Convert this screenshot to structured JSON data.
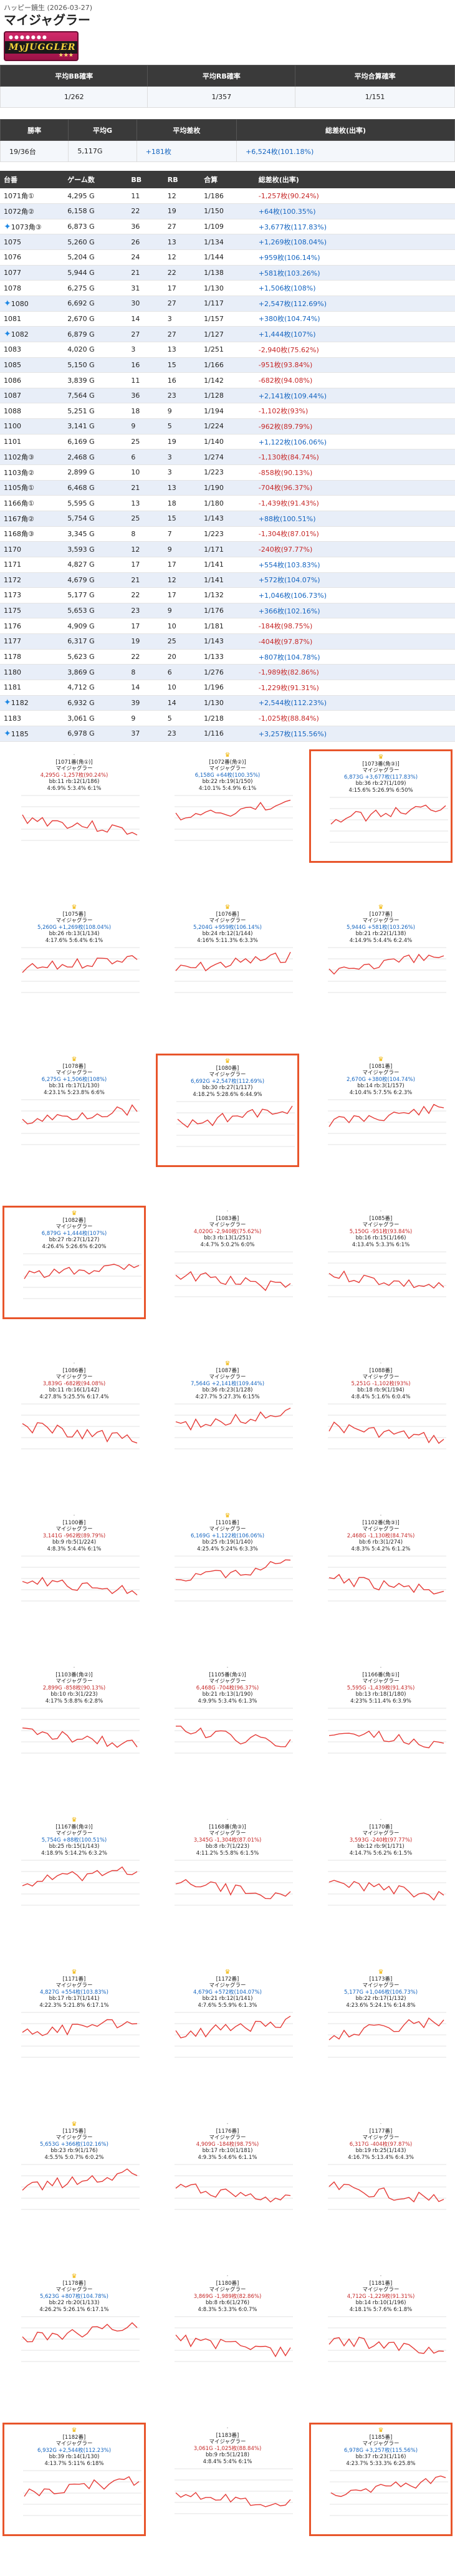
{
  "breadcrumb": "ハッピー鏡生 (2026-03-27)",
  "title": "マイジャグラー",
  "logo_text": "MyJUGGLER",
  "summary1": {
    "headers": [
      "平均BB確率",
      "平均RB確率",
      "平均合算確率"
    ],
    "values": [
      "1/262",
      "1/357",
      "1/151"
    ]
  },
  "summary2": {
    "headers": [
      "勝率",
      "平均G",
      "平均差枚",
      "総差枚(出率)"
    ],
    "values": [
      "19/36台",
      "5,117G",
      "+181枚",
      "+6,524枚(101.18%)"
    ]
  },
  "table": {
    "headers": [
      "台番",
      "ゲーム数",
      "BB",
      "RB",
      "合算",
      "総差枚(出率)"
    ],
    "rows": [
      {
        "no": "1071角①",
        "g": "4,295 G",
        "bb": "11",
        "rb": "12",
        "total": "1/186",
        "diff": "-1,257枚(90.24%)",
        "star": false,
        "pos": false
      },
      {
        "no": "1072角②",
        "g": "6,158 G",
        "bb": "22",
        "rb": "19",
        "total": "1/150",
        "diff": "+64枚(100.35%)",
        "star": false,
        "pos": true
      },
      {
        "no": "1073角③",
        "g": "6,873 G",
        "bb": "36",
        "rb": "27",
        "total": "1/109",
        "diff": "+3,677枚(117.83%)",
        "star": true,
        "pos": true
      },
      {
        "no": "1075",
        "g": "5,260 G",
        "bb": "26",
        "rb": "13",
        "total": "1/134",
        "diff": "+1,269枚(108.04%)",
        "star": false,
        "pos": true
      },
      {
        "no": "1076",
        "g": "5,204 G",
        "bb": "24",
        "rb": "12",
        "total": "1/144",
        "diff": "+959枚(106.14%)",
        "star": false,
        "pos": true
      },
      {
        "no": "1077",
        "g": "5,944 G",
        "bb": "21",
        "rb": "22",
        "total": "1/138",
        "diff": "+581枚(103.26%)",
        "star": false,
        "pos": true
      },
      {
        "no": "1078",
        "g": "6,275 G",
        "bb": "31",
        "rb": "17",
        "total": "1/130",
        "diff": "+1,506枚(108%)",
        "star": false,
        "pos": true
      },
      {
        "no": "1080",
        "g": "6,692 G",
        "bb": "30",
        "rb": "27",
        "total": "1/117",
        "diff": "+2,547枚(112.69%)",
        "star": true,
        "pos": true
      },
      {
        "no": "1081",
        "g": "2,670 G",
        "bb": "14",
        "rb": "3",
        "total": "1/157",
        "diff": "+380枚(104.74%)",
        "star": false,
        "pos": true
      },
      {
        "no": "1082",
        "g": "6,879 G",
        "bb": "27",
        "rb": "27",
        "total": "1/127",
        "diff": "+1,444枚(107%)",
        "star": true,
        "pos": true
      },
      {
        "no": "1083",
        "g": "4,020 G",
        "bb": "3",
        "rb": "13",
        "total": "1/251",
        "diff": "-2,940枚(75.62%)",
        "star": false,
        "pos": false
      },
      {
        "no": "1085",
        "g": "5,150 G",
        "bb": "16",
        "rb": "15",
        "total": "1/166",
        "diff": "-951枚(93.84%)",
        "star": false,
        "pos": false
      },
      {
        "no": "1086",
        "g": "3,839 G",
        "bb": "11",
        "rb": "16",
        "total": "1/142",
        "diff": "-682枚(94.08%)",
        "star": false,
        "pos": false
      },
      {
        "no": "1087",
        "g": "7,564 G",
        "bb": "36",
        "rb": "23",
        "total": "1/128",
        "diff": "+2,141枚(109.44%)",
        "star": false,
        "pos": true
      },
      {
        "no": "1088",
        "g": "5,251 G",
        "bb": "18",
        "rb": "9",
        "total": "1/194",
        "diff": "-1,102枚(93%)",
        "star": false,
        "pos": false
      },
      {
        "no": "1100",
        "g": "3,141 G",
        "bb": "9",
        "rb": "5",
        "total": "1/224",
        "diff": "-962枚(89.79%)",
        "star": false,
        "pos": false
      },
      {
        "no": "1101",
        "g": "6,169 G",
        "bb": "25",
        "rb": "19",
        "total": "1/140",
        "diff": "+1,122枚(106.06%)",
        "star": false,
        "pos": true
      },
      {
        "no": "1102角③",
        "g": "2,468 G",
        "bb": "6",
        "rb": "3",
        "total": "1/274",
        "diff": "-1,130枚(84.74%)",
        "star": false,
        "pos": false
      },
      {
        "no": "1103角②",
        "g": "2,899 G",
        "bb": "10",
        "rb": "3",
        "total": "1/223",
        "diff": "-858枚(90.13%)",
        "star": false,
        "pos": false
      },
      {
        "no": "1105角①",
        "g": "6,468 G",
        "bb": "21",
        "rb": "13",
        "total": "1/190",
        "diff": "-704枚(96.37%)",
        "star": false,
        "pos": false
      },
      {
        "no": "1166角①",
        "g": "5,595 G",
        "bb": "13",
        "rb": "18",
        "total": "1/180",
        "diff": "-1,439枚(91.43%)",
        "star": false,
        "pos": false
      },
      {
        "no": "1167角②",
        "g": "5,754 G",
        "bb": "25",
        "rb": "15",
        "total": "1/143",
        "diff": "+88枚(100.51%)",
        "star": false,
        "pos": true
      },
      {
        "no": "1168角③",
        "g": "3,345 G",
        "bb": "8",
        "rb": "7",
        "total": "1/223",
        "diff": "-1,304枚(87.01%)",
        "star": false,
        "pos": false
      },
      {
        "no": "1170",
        "g": "3,593 G",
        "bb": "12",
        "rb": "9",
        "total": "1/171",
        "diff": "-240枚(97.77%)",
        "star": false,
        "pos": false
      },
      {
        "no": "1171",
        "g": "4,827 G",
        "bb": "17",
        "rb": "17",
        "total": "1/141",
        "diff": "+554枚(103.83%)",
        "star": false,
        "pos": true
      },
      {
        "no": "1172",
        "g": "4,679 G",
        "bb": "21",
        "rb": "12",
        "total": "1/141",
        "diff": "+572枚(104.07%)",
        "star": false,
        "pos": true
      },
      {
        "no": "1173",
        "g": "5,177 G",
        "bb": "22",
        "rb": "17",
        "total": "1/132",
        "diff": "+1,046枚(106.73%)",
        "star": false,
        "pos": true
      },
      {
        "no": "1175",
        "g": "5,653 G",
        "bb": "23",
        "rb": "9",
        "total": "1/176",
        "diff": "+366枚(102.16%)",
        "star": false,
        "pos": true
      },
      {
        "no": "1176",
        "g": "4,909 G",
        "bb": "17",
        "rb": "10",
        "total": "1/181",
        "diff": "-184枚(98.75%)",
        "star": false,
        "pos": false
      },
      {
        "no": "1177",
        "g": "6,317 G",
        "bb": "19",
        "rb": "25",
        "total": "1/143",
        "diff": "-404枚(97.87%)",
        "star": false,
        "pos": false
      },
      {
        "no": "1178",
        "g": "5,623 G",
        "bb": "22",
        "rb": "20",
        "total": "1/133",
        "diff": "+807枚(104.78%)",
        "star": false,
        "pos": true
      },
      {
        "no": "1180",
        "g": "3,869 G",
        "bb": "8",
        "rb": "6",
        "total": "1/276",
        "diff": "-1,989枚(82.86%)",
        "star": false,
        "pos": false
      },
      {
        "no": "1181",
        "g": "4,712 G",
        "bb": "14",
        "rb": "10",
        "total": "1/196",
        "diff": "-1,229枚(91.31%)",
        "star": false,
        "pos": false
      },
      {
        "no": "1182",
        "g": "6,932 G",
        "bb": "39",
        "rb": "14",
        "total": "1/130",
        "diff": "+2,544枚(112.23%)",
        "star": true,
        "pos": true
      },
      {
        "no": "1183",
        "g": "3,061 G",
        "bb": "9",
        "rb": "5",
        "total": "1/218",
        "diff": "-1,025枚(88.84%)",
        "star": false,
        "pos": false
      },
      {
        "no": "1185",
        "g": "6,978 G",
        "bb": "37",
        "rb": "23",
        "total": "1/116",
        "diff": "+3,257枚(115.56%)",
        "star": true,
        "pos": true
      }
    ]
  },
  "cards": [
    {
      "t": "[1071番(角①)]",
      "m": "マイジャグラー",
      "l1": "4,295G -1,257枚(90.24%)",
      "l2": "bb:11 rb:12(1/186)",
      "l3": "4:6.9% 5:3.4% 6:1%",
      "hl": false,
      "star": false,
      "pos": false
    },
    {
      "t": "[1072番(角②)]",
      "m": "マイジャグラー",
      "l1": "6,158G +64枚(100.35%)",
      "l2": "bb:22 rb:19(1/150)",
      "l3": "4:10.1% 5:4.9% 6:1%",
      "hl": false,
      "star": true,
      "pos": true
    },
    {
      "t": "[1073番(角③)]",
      "m": "マイジャグラー",
      "l1": "6,873G +3,677枚(117.83%)",
      "l2": "bb:36 rb:27(1/109)",
      "l3": "4:15.6% 5:26.9% 6:50%",
      "hl": true,
      "star": true,
      "pos": true
    },
    {
      "t": "[1075番]",
      "m": "マイジャグラー",
      "l1": "5,260G +1,269枚(108.04%)",
      "l2": "bb:26 rb:13(1/134)",
      "l3": "4:17.6% 5:6.4% 6:1%",
      "hl": false,
      "star": true,
      "pos": true
    },
    {
      "t": "[1076番]",
      "m": "マイジャグラー",
      "l1": "5,204G +959枚(106.14%)",
      "l2": "bb:24 rb:12(1/144)",
      "l3": "4:16% 5:11.3% 6:3.3%",
      "hl": false,
      "star": true,
      "pos": true
    },
    {
      "t": "[1077番]",
      "m": "マイジャグラー",
      "l1": "5,944G +581枚(103.26%)",
      "l2": "bb:21 rb:22(1/138)",
      "l3": "4:14.9% 5:4.4% 6:2.4%",
      "hl": false,
      "star": true,
      "pos": true
    },
    {
      "t": "[1078番]",
      "m": "マイジャグラー",
      "l1": "6,275G +1,506枚(108%)",
      "l2": "bb:31 rb:17(1/130)",
      "l3": "4:23.1% 5:23.8% 6:6%",
      "hl": false,
      "star": true,
      "pos": true
    },
    {
      "t": "[1080番]",
      "m": "マイジャグラー",
      "l1": "6,692G +2,547枚(112.69%)",
      "l2": "bb:30 rb:27(1/117)",
      "l3": "4:18.2% 5:28.6% 6:44.9%",
      "hl": true,
      "star": true,
      "pos": true
    },
    {
      "t": "[1081番]",
      "m": "マイジャグラー",
      "l1": "2,670G +380枚(104.74%)",
      "l2": "bb:14 rb:3(1/157)",
      "l3": "4:10.4% 5:7.5% 6:2.3%",
      "hl": false,
      "star": true,
      "pos": true
    },
    {
      "t": "[1082番]",
      "m": "マイジャグラー",
      "l1": "6,879G +1,444枚(107%)",
      "l2": "bb:27 rb:27(1/127)",
      "l3": "4:26.4% 5:26.6% 6:20%",
      "hl": true,
      "star": true,
      "pos": true
    },
    {
      "t": "[1083番]",
      "m": "マイジャグラー",
      "l1": "4,020G -2,940枚(75.62%)",
      "l2": "bb:3 rb:13(1/251)",
      "l3": "4:4.7% 5:0.2% 6:0%",
      "hl": false,
      "star": false,
      "pos": false
    },
    {
      "t": "[1085番]",
      "m": "マイジャグラー",
      "l1": "5,150G -951枚(93.84%)",
      "l2": "bb:16 rb:15(1/166)",
      "l3": "4:13.4% 5:3.3% 6:1%",
      "hl": false,
      "star": false,
      "pos": false
    },
    {
      "t": "[1086番]",
      "m": "マイジャグラー",
      "l1": "3,839G -682枚(94.08%)",
      "l2": "bb:11 rb:16(1/142)",
      "l3": "4:27.8% 5:25.5% 6:17.4%",
      "hl": false,
      "star": false,
      "pos": false
    },
    {
      "t": "[1087番]",
      "m": "マイジャグラー",
      "l1": "7,564G +2,141枚(109.44%)",
      "l2": "bb:36 rb:23(1/128)",
      "l3": "4:27.7% 5:27.3% 6:15%",
      "hl": false,
      "star": true,
      "pos": true
    },
    {
      "t": "[1088番]",
      "m": "マイジャグラー",
      "l1": "5,251G -1,102枚(93%)",
      "l2": "bb:18 rb:9(1/194)",
      "l3": "4:8.4% 5:1.6% 6:0.4%",
      "hl": false,
      "star": false,
      "pos": false
    },
    {
      "t": "[1100番]",
      "m": "マイジャグラー",
      "l1": "3,141G -962枚(89.79%)",
      "l2": "bb:9 rb:5(1/224)",
      "l3": "4:8.3% 5:4.4% 6:1%",
      "hl": false,
      "star": false,
      "pos": false
    },
    {
      "t": "[1101番]",
      "m": "マイジャグラー",
      "l1": "6,169G +1,122枚(106.06%)",
      "l2": "bb:25 rb:19(1/140)",
      "l3": "4:25.4% 5:24% 6:3.3%",
      "hl": false,
      "star": true,
      "pos": true
    },
    {
      "t": "[1102番(角③)]",
      "m": "マイジャグラー",
      "l1": "2,468G -1,130枚(84.74%)",
      "l2": "bb:6 rb:3(1/274)",
      "l3": "4:8.3% 5:4.2% 6:1.2%",
      "hl": false,
      "star": false,
      "pos": false
    },
    {
      "t": "[1103番(角②)]",
      "m": "マイジャグラー",
      "l1": "2,899G -858枚(90.13%)",
      "l2": "bb:10 rb:3(1/223)",
      "l3": "4:17% 5:8.8% 6:2.8%",
      "hl": false,
      "star": false,
      "pos": false
    },
    {
      "t": "[1105番(角①)]",
      "m": "マイジャグラー",
      "l1": "6,468G -704枚(96.37%)",
      "l2": "bb:21 rb:13(1/190)",
      "l3": "4:9.9% 5:3.4% 6:1.3%",
      "hl": false,
      "star": false,
      "pos": false
    },
    {
      "t": "[1166番(角①)]",
      "m": "マイジャグラー",
      "l1": "5,595G -1,439枚(91.43%)",
      "l2": "bb:13 rb:18(1/180)",
      "l3": "4:23% 5:11.4% 6:3.9%",
      "hl": false,
      "star": false,
      "pos": false
    },
    {
      "t": "[1167番(角②)]",
      "m": "マイジャグラー",
      "l1": "5,754G +88枚(100.51%)",
      "l2": "bb:25 rb:15(1/143)",
      "l3": "4:18.9% 5:14.2% 6:3.2%",
      "hl": false,
      "star": true,
      "pos": true
    },
    {
      "t": "[1168番(角③)]",
      "m": "マイジャグラー",
      "l1": "3,345G -1,304枚(87.01%)",
      "l2": "bb:8 rb:7(1/223)",
      "l3": "4:11.2% 5:5.8% 6:1.5%",
      "hl": false,
      "star": false,
      "pos": false
    },
    {
      "t": "[1170番]",
      "m": "マイジャグラー",
      "l1": "3,593G -240枚(97.77%)",
      "l2": "bb:12 rb:9(1/171)",
      "l3": "4:14.7% 5:6.2% 6:1.5%",
      "hl": false,
      "star": false,
      "pos": false
    },
    {
      "t": "[1171番]",
      "m": "マイジャグラー",
      "l1": "4,827G +554枚(103.83%)",
      "l2": "bb:17 rb:17(1/141)",
      "l3": "4:22.3% 5:21.8% 6:17.1%",
      "hl": false,
      "star": true,
      "pos": true
    },
    {
      "t": "[1172番]",
      "m": "マイジャグラー",
      "l1": "4,679G +572枚(104.07%)",
      "l2": "bb:21 rb:12(1/141)",
      "l3": "4:7.6% 5:5.9% 6:1.3%",
      "hl": false,
      "star": true,
      "pos": true
    },
    {
      "t": "[1173番]",
      "m": "マイジャグラー",
      "l1": "5,177G +1,046枚(106.73%)",
      "l2": "bb:22 rb:17(1/132)",
      "l3": "4:23.6% 5:24.1% 6:14.8%",
      "hl": false,
      "star": true,
      "pos": true
    },
    {
      "t": "[1175番]",
      "m": "マイジャグラー",
      "l1": "5,653G +366枚(102.16%)",
      "l2": "bb:23 rb:9(1/176)",
      "l3": "4:5.5% 5:0.7% 6:0.2%",
      "hl": false,
      "star": true,
      "pos": true
    },
    {
      "t": "[1176番]",
      "m": "マイジャグラー",
      "l1": "4,909G -184枚(98.75%)",
      "l2": "bb:17 rb:10(1/181)",
      "l3": "4:9.3% 5:4.6% 6:1.1%",
      "hl": false,
      "star": false,
      "pos": false
    },
    {
      "t": "[1177番]",
      "m": "マイジャグラー",
      "l1": "6,317G -404枚(97.87%)",
      "l2": "bb:19 rb:25(1/143)",
      "l3": "4:16.7% 5:13.4% 6:4.3%",
      "hl": false,
      "star": false,
      "pos": false
    },
    {
      "t": "[1178番]",
      "m": "マイジャグラー",
      "l1": "5,623G +807枚(104.78%)",
      "l2": "bb:22 rb:20(1/133)",
      "l3": "4:26.2% 5:26.1% 6:17.1%",
      "hl": false,
      "star": true,
      "pos": true
    },
    {
      "t": "[1180番]",
      "m": "マイジャグラー",
      "l1": "3,869G -1,989枚(82.86%)",
      "l2": "bb:8 rb:6(1/276)",
      "l3": "4:8.3% 5:3.3% 6:0.7%",
      "hl": false,
      "star": false,
      "pos": false
    },
    {
      "t": "[1181番]",
      "m": "マイジャグラー",
      "l1": "4,712G -1,229枚(91.31%)",
      "l2": "bb:14 rb:10(1/196)",
      "l3": "4:18.1% 5:7.6% 6:1.8%",
      "hl": false,
      "star": false,
      "pos": false
    },
    {
      "t": "[1182番]",
      "m": "マイジャグラー",
      "l1": "6,932G +2,544枚(112.23%)",
      "l2": "bb:39 rb:14(1/130)",
      "l3": "4:13.7% 5:11% 6:18%",
      "hl": true,
      "star": true,
      "pos": true
    },
    {
      "t": "[1183番]",
      "m": "マイジャグラー",
      "l1": "3,061G -1,025枚(88.84%)",
      "l2": "bb:9 rb:5(1/218)",
      "l3": "4:8.4% 5:4% 6:1%",
      "hl": false,
      "star": false,
      "pos": false
    },
    {
      "t": "[1185番]",
      "m": "マイジャグラー",
      "l1": "6,978G +3,257枚(115.56%)",
      "l2": "bb:37 rb:23(1/116)",
      "l3": "4:23.7% 5:33.3% 6:25.8%",
      "hl": true,
      "star": true,
      "pos": true
    }
  ]
}
